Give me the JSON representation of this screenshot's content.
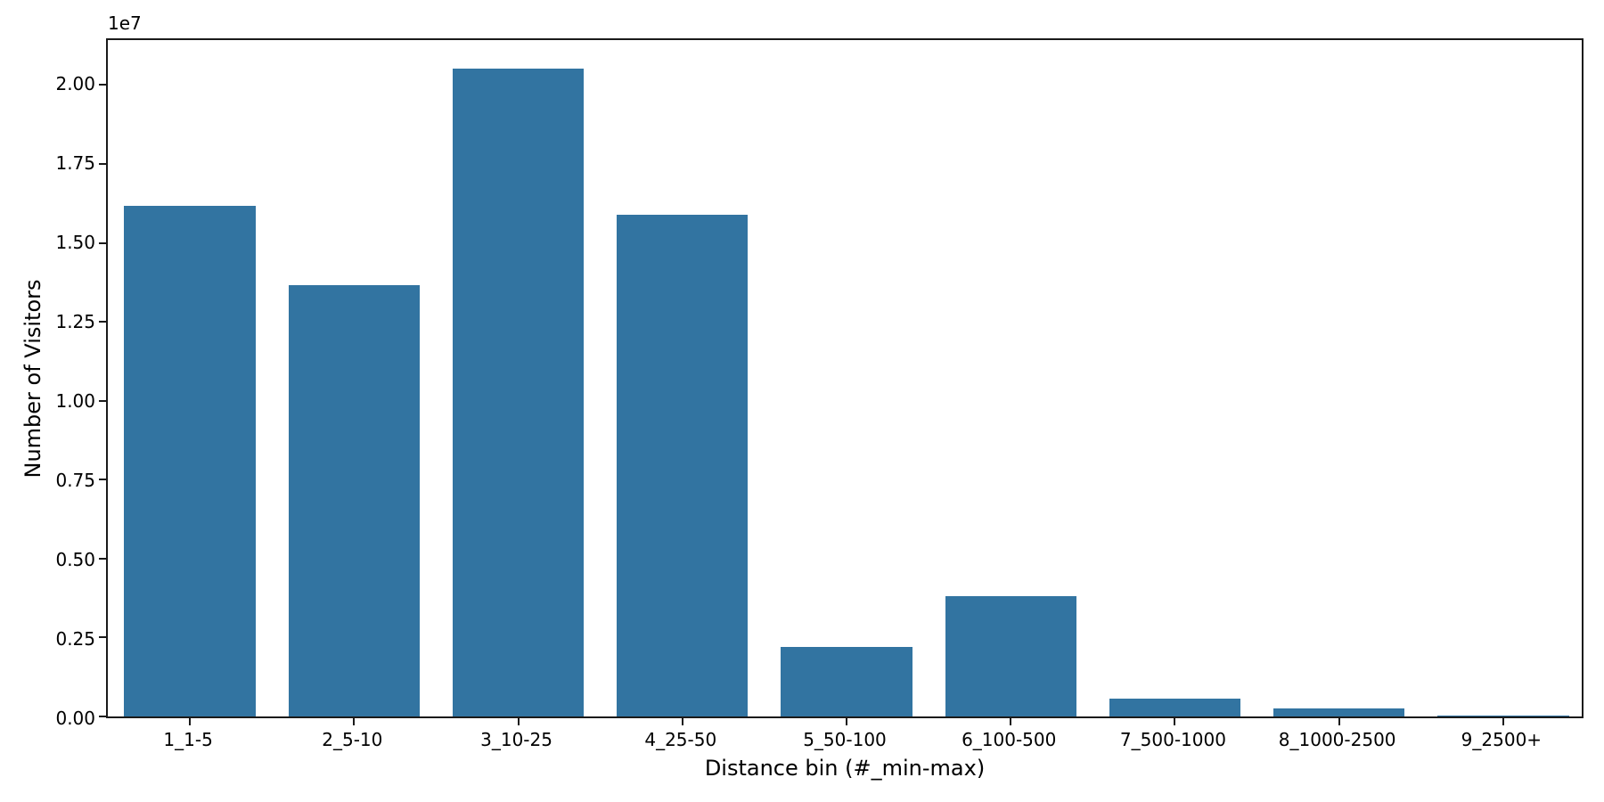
{
  "chart_data": {
    "type": "bar",
    "title": "",
    "xlabel": "Distance bin (#_min-max)",
    "ylabel": "Number of Visitors",
    "y_offset_label": "1e7",
    "categories": [
      "1_1-5",
      "2_5-10",
      "3_10-25",
      "4_25-50",
      "5_50-100",
      "6_100-500",
      "7_500-1000",
      "8_1000-2500",
      "9_2500+"
    ],
    "values": [
      16100000,
      13600000,
      20400000,
      15800000,
      2200000,
      3800000,
      560000,
      260000,
      20000
    ],
    "ylim": [
      0,
      21420000
    ],
    "yticks": [
      0,
      2500000,
      5000000,
      7500000,
      10000000,
      12500000,
      15000000,
      17500000,
      20000000
    ],
    "ytick_labels": [
      "0.00",
      "0.25",
      "0.50",
      "0.75",
      "1.00",
      "1.25",
      "1.50",
      "1.75",
      "2.00"
    ],
    "bar_width_fraction": 0.8,
    "bar_color": "#3274a1",
    "axis_color": "#1a1a1a",
    "text_color": "#000000",
    "background_color": "#ffffff",
    "grid": false,
    "legend": null
  }
}
